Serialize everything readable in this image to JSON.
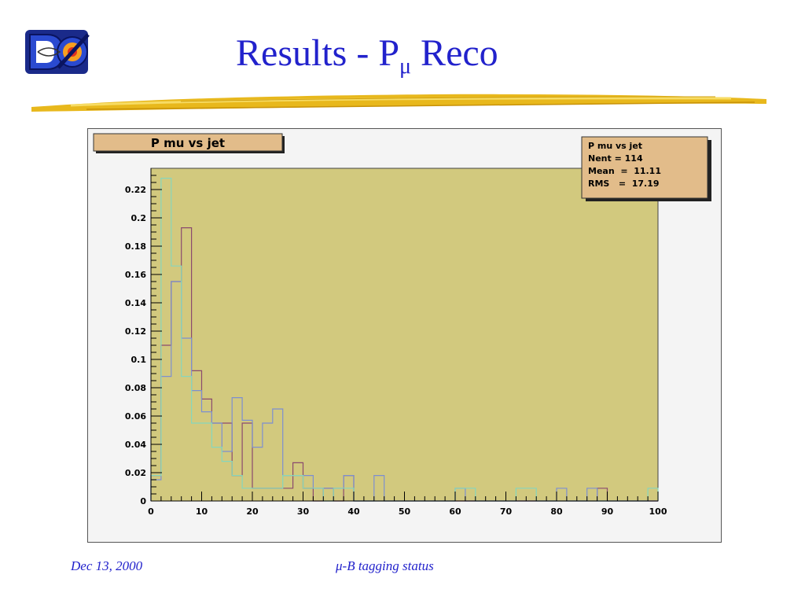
{
  "slide": {
    "title_main": "Results - P",
    "title_sub": "μ",
    "title_tail": " Reco",
    "footer_date": "Dec 13, 2000",
    "footer_center": "μ-B tagging status"
  },
  "colors": {
    "title": "#2222cc",
    "plot_bg": "#d2c97e",
    "stats_bg": "#e2bc8a",
    "series_a": "#8a4a6e",
    "series_b": "#7d8fd0",
    "series_c": "#86d6bd"
  },
  "chart_data": {
    "type": "histogram",
    "title": "P mu vs jet",
    "stats": {
      "name": "P mu vs jet",
      "nent_label": "Nent = 114",
      "mean_label": "Mean  =  11.11",
      "rms_label": "RMS   =  17.19"
    },
    "xlim": [
      0,
      100
    ],
    "ylim": [
      0,
      0.235
    ],
    "grid": false,
    "legend": "top-right",
    "x_ticks": [
      0,
      10,
      20,
      30,
      40,
      50,
      60,
      70,
      80,
      90,
      100
    ],
    "x_tick_labels": [
      "0",
      "10",
      "20",
      "30",
      "40",
      "50",
      "60",
      "70",
      "80",
      "90",
      "100"
    ],
    "y_ticks": [
      0,
      0.02,
      0.04,
      0.06,
      0.08,
      0.1,
      0.12,
      0.14,
      0.16,
      0.18,
      0.2,
      0.22
    ],
    "y_tick_labels": [
      "0",
      "0.02",
      "0.04",
      "0.06",
      "0.08",
      "0.1",
      "0.12",
      "0.14",
      "0.16",
      "0.18",
      "0.2",
      "0.22"
    ],
    "bin_edges": [
      0,
      2,
      4,
      6,
      8,
      10,
      12,
      14,
      16,
      18,
      20,
      22,
      24,
      26,
      28,
      30,
      32,
      34,
      36,
      38,
      40,
      42,
      44,
      46,
      48,
      50,
      52,
      54,
      56,
      58,
      60,
      62,
      64,
      66,
      68,
      70,
      72,
      74,
      76,
      78,
      80,
      82,
      84,
      86,
      88,
      90,
      92,
      94,
      96,
      98,
      100
    ],
    "series": [
      {
        "color": "#8a4a6e",
        "values": [
          0.018,
          0.11,
          0.155,
          0.193,
          0.092,
          0.072,
          0.055,
          0.055,
          0.018,
          0.055,
          0.009,
          0.009,
          0.009,
          0.009,
          0.027,
          0.009,
          0,
          0.009,
          0,
          0.018,
          0,
          0,
          0,
          0,
          0,
          0,
          0,
          0,
          0,
          0,
          0,
          0,
          0,
          0,
          0,
          0,
          0,
          0,
          0,
          0,
          0,
          0,
          0,
          0,
          0.009,
          0,
          0,
          0,
          0,
          0
        ]
      },
      {
        "color": "#7d8fd0",
        "values": [
          0.015,
          0.088,
          0.155,
          0.115,
          0.078,
          0.063,
          0.055,
          0.035,
          0.073,
          0.057,
          0.038,
          0.055,
          0.065,
          0.018,
          0.018,
          0.018,
          0.009,
          0.009,
          0.009,
          0.018,
          0,
          0,
          0.018,
          0,
          0,
          0,
          0,
          0,
          0,
          0,
          0.009,
          0,
          0,
          0,
          0,
          0,
          0,
          0,
          0,
          0,
          0.009,
          0,
          0,
          0.009,
          0,
          0,
          0,
          0,
          0,
          0
        ]
      },
      {
        "color": "#86d6bd",
        "values": [
          0.018,
          0.228,
          0.166,
          0.088,
          0.055,
          0.055,
          0.038,
          0.028,
          0.018,
          0.009,
          0.009,
          0.009,
          0.009,
          0.018,
          0.018,
          0.009,
          0.009,
          0,
          0.009,
          0.009,
          0,
          0,
          0,
          0,
          0,
          0,
          0,
          0,
          0,
          0,
          0.009,
          0.009,
          0,
          0,
          0,
          0,
          0.009,
          0.009,
          0,
          0,
          0,
          0,
          0,
          0,
          0,
          0,
          0,
          0,
          0,
          0.009
        ]
      }
    ]
  }
}
